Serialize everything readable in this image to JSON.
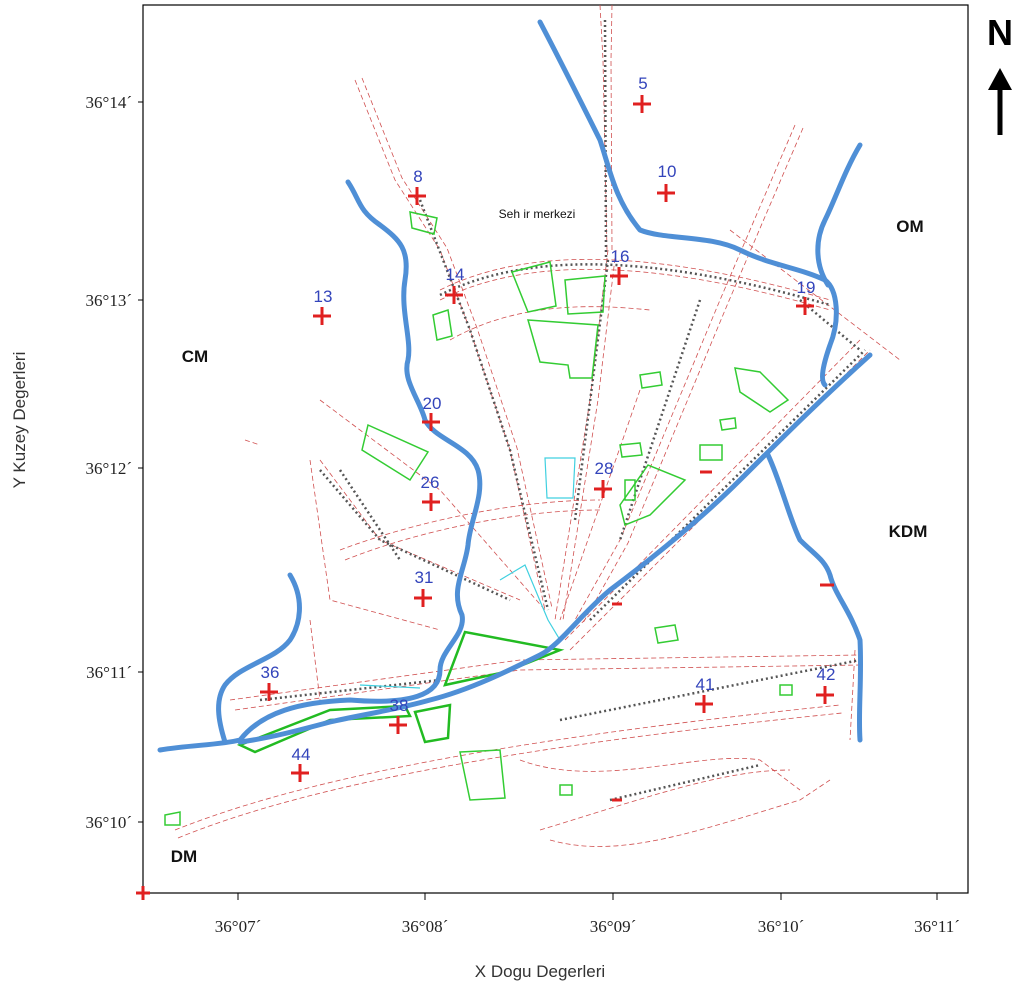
{
  "north_label": "N",
  "x_axis_title": "X Dogu Degerleri",
  "y_axis_title": "Y Kuzey Degerleri",
  "x_ticks": [
    "36°07´",
    "36°08´",
    "36°09´",
    "36°10´",
    "36°11´"
  ],
  "y_ticks": [
    "36°14´",
    "36°13´",
    "36°12´",
    "36°11´",
    "36°10´"
  ],
  "regions": [
    "OM",
    "CM",
    "KDM",
    "DM"
  ],
  "city_center": "Seh ir merkezi",
  "stations": [
    "5",
    "8",
    "10",
    "13",
    "14",
    "16",
    "19",
    "20",
    "26",
    "28",
    "31",
    "36",
    "38",
    "41",
    "42",
    "44"
  ],
  "colors": {
    "river": "#4f8fd6",
    "station_marker": "#e02020",
    "station_label": "#3344bb",
    "park": "#33cc33",
    "road": "#d05050"
  }
}
